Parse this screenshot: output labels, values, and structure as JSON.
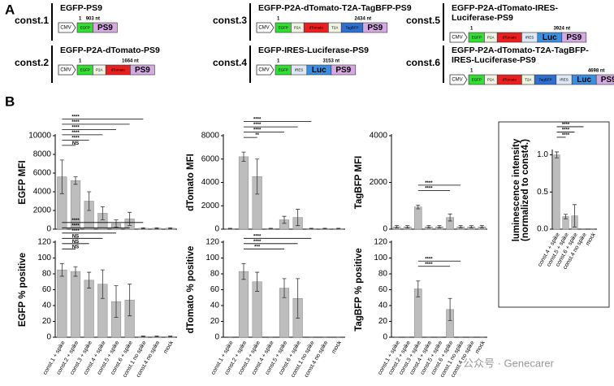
{
  "panel_a": {
    "label": "A",
    "constructs": [
      {
        "name": "const.1",
        "title": [
          "EGFP-PS9"
        ],
        "start": "1",
        "length": "903 nt",
        "promoter": "CMV",
        "segments": [
          {
            "label": "EGFP",
            "color": "#33dd33"
          },
          {
            "label": "PS9",
            "color": "#d7a9e3",
            "bold": true
          }
        ]
      },
      {
        "name": "const.2",
        "title": [
          "EGFP-P2A-dTomato-PS9"
        ],
        "start": "1",
        "length": "1664 nt",
        "promoter": "CMV",
        "segments": [
          {
            "label": "EGFP",
            "color": "#33dd33"
          },
          {
            "label": "P2A",
            "color": "#eef3e2"
          },
          {
            "label": "dTomato",
            "color": "#e82020"
          },
          {
            "label": "PS9",
            "color": "#d7a9e3",
            "bold": true
          }
        ]
      },
      {
        "name": "const.3",
        "title": [
          "EGFP-P2A-dTomato-T2A-TagBFP-PS9"
        ],
        "start": "1",
        "length": "2434 nt",
        "promoter": "CMV",
        "segments": [
          {
            "label": "EGFP",
            "color": "#33dd33"
          },
          {
            "label": "P2A",
            "color": "#eef3e2"
          },
          {
            "label": "dTomato",
            "color": "#e82020"
          },
          {
            "label": "T2A",
            "color": "#eef3e2"
          },
          {
            "label": "TagBFP",
            "color": "#2f6fd0"
          },
          {
            "label": "PS9",
            "color": "#d7a9e3",
            "bold": true
          }
        ]
      },
      {
        "name": "const.4",
        "title": [
          "EGFP-IRES-Luciferase-PS9"
        ],
        "start": "1",
        "length": "3153 nt",
        "promoter": "CMV",
        "segments": [
          {
            "label": "EGFP",
            "color": "#33dd33"
          },
          {
            "label": "IRES",
            "color": "#dfe9f6"
          },
          {
            "label": "Luc",
            "color": "#3a8fe0",
            "bold": true
          },
          {
            "label": "PS9",
            "color": "#d7a9e3",
            "bold": true
          }
        ]
      },
      {
        "name": "const.5",
        "title": [
          "EGFP-P2A-dTomato-IRES-",
          "Luciferase-PS9"
        ],
        "start": "1",
        "length": "3924 nt",
        "promoter": "CMV",
        "segments": [
          {
            "label": "EGFP",
            "color": "#33dd33"
          },
          {
            "label": "P2A",
            "color": "#eef3e2"
          },
          {
            "label": "dTomato",
            "color": "#e82020"
          },
          {
            "label": "IRES",
            "color": "#dfe9f6"
          },
          {
            "label": "Luc",
            "color": "#3a8fe0",
            "bold": true
          },
          {
            "label": "PS9",
            "color": "#d7a9e3",
            "bold": true
          }
        ]
      },
      {
        "name": "const.6",
        "title": [
          "EGFP-P2A-dTomato-T2A-TagBFP-",
          "IRES-Luciferase-PS9"
        ],
        "start": "1",
        "length": "4698 nt",
        "promoter": "CMV",
        "segments": [
          {
            "label": "EGFP",
            "color": "#33dd33"
          },
          {
            "label": "P2A",
            "color": "#eef3e2"
          },
          {
            "label": "dTomato",
            "color": "#e82020"
          },
          {
            "label": "T2A",
            "color": "#eef3e2"
          },
          {
            "label": "TagBFP",
            "color": "#2f6fd0"
          },
          {
            "label": "IRES",
            "color": "#dfe9f6"
          },
          {
            "label": "Luc",
            "color": "#3a8fe0",
            "bold": true
          },
          {
            "label": "PS9",
            "color": "#d7a9e3",
            "bold": true
          }
        ]
      }
    ]
  },
  "panel_b": {
    "label": "B",
    "watermark": "公众号 · Genecarer"
  },
  "chart_data": [
    {
      "type": "bar",
      "ylabel": [
        "EGFP MFI"
      ],
      "color": "#bdbdbd",
      "values": [
        5600,
        5200,
        3000,
        1700,
        600,
        1100,
        100,
        100,
        100
      ],
      "errors": [
        1800,
        400,
        1000,
        700,
        400,
        700,
        50,
        50,
        50
      ],
      "ylim": [
        0,
        10000
      ],
      "yticks": [
        0,
        2000,
        4000,
        6000,
        8000,
        10000
      ],
      "annotations": [
        {
          "between": [
            0,
            1
          ],
          "label": "NS"
        },
        {
          "between": [
            0,
            2
          ],
          "label": "****"
        },
        {
          "between": [
            0,
            3
          ],
          "label": "****"
        },
        {
          "between": [
            0,
            4
          ],
          "label": "****"
        },
        {
          "between": [
            0,
            5
          ],
          "label": "****"
        },
        {
          "between": [
            0,
            6
          ],
          "label": "****"
        }
      ]
    },
    {
      "type": "bar",
      "ylabel": [
        "dTomato MFI"
      ],
      "color": "#bdbdbd",
      "values": [
        50,
        6200,
        4500,
        50,
        800,
        1000,
        50,
        50,
        50
      ],
      "errors": [
        30,
        400,
        1500,
        30,
        300,
        700,
        30,
        30,
        30
      ],
      "ylim": [
        0,
        8000
      ],
      "yticks": [
        0,
        2000,
        4000,
        6000,
        8000
      ],
      "annotations": [
        {
          "between": [
            1,
            2
          ],
          "label": "**"
        },
        {
          "between": [
            1,
            4
          ],
          "label": "****"
        },
        {
          "between": [
            1,
            5
          ],
          "label": "****"
        },
        {
          "between": [
            1,
            6
          ],
          "label": "****"
        }
      ]
    },
    {
      "type": "bar",
      "ylabel": [
        "TagBFP MFI"
      ],
      "color": "#bdbdbd",
      "values": [
        100,
        100,
        950,
        100,
        100,
        500,
        100,
        100,
        100
      ],
      "errors": [
        50,
        50,
        80,
        50,
        50,
        150,
        50,
        50,
        50
      ],
      "ylim": [
        0,
        4000
      ],
      "yticks": [
        0,
        2000,
        4000
      ],
      "annotations": [
        {
          "between": [
            2,
            5
          ],
          "label": "****"
        },
        {
          "between": [
            2,
            6
          ],
          "label": "****"
        }
      ]
    },
    {
      "type": "bar",
      "ylabel": [
        "luminescence intensity",
        "(normalized to const4.)"
      ],
      "color": "#bdbdbd",
      "categories": [
        "const.4 + spike",
        "const.5 + spike",
        "const.6 + spike",
        "const.4 no spike",
        "mock"
      ],
      "values": [
        1.0,
        0.17,
        0.18,
        0,
        0
      ],
      "errors": [
        0.04,
        0.03,
        0.15,
        0,
        0
      ],
      "ylim": [
        0,
        1.05
      ],
      "yticks": [
        {
          "value": 0,
          "label": "0.0"
        },
        0.5,
        {
          "value": 1,
          "label": "1.0"
        }
      ],
      "annotations": [
        {
          "between": [
            0,
            1
          ],
          "label": "****"
        },
        {
          "between": [
            0,
            2
          ],
          "label": "****"
        },
        {
          "between": [
            0,
            3
          ],
          "label": "****"
        }
      ]
    },
    {
      "type": "bar",
      "ylabel": [
        "EGFP % positive"
      ],
      "color": "#bdbdbd",
      "categories": [
        "const.1 + spike",
        "const.2 + spike",
        "const.3 + spike",
        "const.4 + spike",
        "const.5 + spike",
        "const.6 + spike",
        "const.1 no spike",
        "const.4 no spike",
        "mock"
      ],
      "values": [
        85,
        83,
        72,
        67,
        45,
        47,
        1,
        1,
        1
      ],
      "errors": [
        8,
        6,
        10,
        18,
        20,
        20,
        0.5,
        0.5,
        0.5
      ],
      "ylim": [
        0,
        120
      ],
      "yticks": [
        0,
        20,
        40,
        60,
        80,
        100,
        120
      ],
      "annotations": [
        {
          "between": [
            0,
            1
          ],
          "label": "NS"
        },
        {
          "between": [
            0,
            2
          ],
          "label": "NS"
        },
        {
          "between": [
            0,
            3
          ],
          "label": "NS"
        },
        {
          "between": [
            0,
            4
          ],
          "label": "****"
        },
        {
          "between": [
            0,
            5
          ],
          "label": "****"
        },
        {
          "between": [
            0,
            6
          ],
          "label": "****"
        }
      ]
    },
    {
      "type": "bar",
      "ylabel": [
        "dTomato % positive"
      ],
      "color": "#bdbdbd",
      "categories": [
        "const.1 + spike",
        "const.2 + spike",
        "const.3 + spike",
        "const.4 + spike",
        "const.5 + spike",
        "const.6 + spike",
        "const.1 no spike",
        "const.4 no spike",
        "mock"
      ],
      "values": [
        0,
        83,
        70,
        0,
        62,
        49,
        0,
        0,
        0
      ],
      "errors": [
        0,
        10,
        12,
        0,
        12,
        25,
        0,
        0,
        0
      ],
      "ylim": [
        0,
        120
      ],
      "yticks": [
        0,
        20,
        40,
        60,
        80,
        100,
        120
      ],
      "annotations": [
        {
          "between": [
            1,
            4
          ],
          "label": "***"
        },
        {
          "between": [
            1,
            5
          ],
          "label": "****"
        },
        {
          "between": [
            1,
            6
          ],
          "label": "****"
        }
      ]
    },
    {
      "type": "bar",
      "ylabel": [
        "TagBFP % positive"
      ],
      "color": "#bdbdbd",
      "categories": [
        "const.1 + spike",
        "const.2 + spike",
        "const.3 + spike",
        "const.4 + spike",
        "const.5 + spike",
        "const.6 + spike",
        "const.1 no spike",
        "const.4 no spike",
        "mock"
      ],
      "values": [
        0,
        0,
        61,
        0,
        0,
        35,
        0,
        0,
        0
      ],
      "errors": [
        0,
        0,
        10,
        0,
        0,
        14,
        0,
        0,
        0
      ],
      "ylim": [
        0,
        120
      ],
      "yticks": [
        0,
        20,
        40,
        60,
        80,
        100,
        120
      ],
      "annotations": [
        {
          "between": [
            2,
            5
          ],
          "label": "****"
        },
        {
          "between": [
            2,
            6
          ],
          "label": "****"
        }
      ]
    }
  ]
}
